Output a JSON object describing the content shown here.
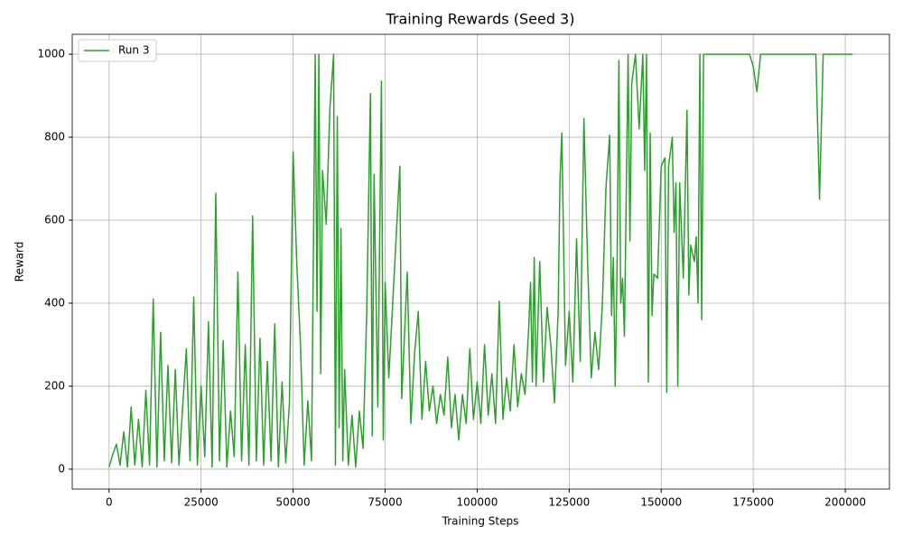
{
  "chart_data": {
    "type": "line",
    "title": "Training Rewards (Seed 3)",
    "xlabel": "Training Steps",
    "ylabel": "Reward",
    "x": [
      0,
      1000,
      2000,
      3000,
      4000,
      5000,
      6000,
      7000,
      8000,
      9000,
      10000,
      11000,
      12000,
      13000,
      14000,
      15000,
      16000,
      17000,
      18000,
      19000,
      20000,
      21000,
      22000,
      23000,
      24000,
      25000,
      26000,
      27000,
      28000,
      29000,
      30000,
      31000,
      32000,
      33000,
      34000,
      35000,
      36000,
      37000,
      38000,
      39000,
      40000,
      41000,
      42000,
      43000,
      44000,
      45000,
      46000,
      47000,
      48000,
      49000,
      50000,
      51000,
      52000,
      53000,
      54000,
      55000,
      56000,
      56500,
      57000,
      57500,
      58000,
      59000,
      60000,
      61000,
      61500,
      62000,
      62500,
      63000,
      63500,
      64000,
      65000,
      66000,
      67000,
      68000,
      69000,
      70000,
      71000,
      71500,
      72000,
      73000,
      74000,
      74500,
      75000,
      76000,
      77000,
      78000,
      79000,
      79500,
      80000,
      81000,
      82000,
      83000,
      84000,
      85000,
      86000,
      87000,
      88000,
      89000,
      90000,
      91000,
      92000,
      93000,
      94000,
      95000,
      96000,
      97000,
      98000,
      99000,
      100000,
      101000,
      102000,
      103000,
      104000,
      105000,
      106000,
      107000,
      108000,
      109000,
      110000,
      111000,
      112000,
      113000,
      114000,
      114500,
      115000,
      115500,
      116000,
      117000,
      118000,
      119000,
      120000,
      121000,
      122000,
      122500,
      123000,
      124000,
      125000,
      126000,
      127000,
      128000,
      129000,
      130000,
      131000,
      132000,
      133000,
      134000,
      135000,
      136000,
      136500,
      137000,
      137500,
      138000,
      138500,
      139000,
      139500,
      140000,
      141000,
      141500,
      142000,
      143000,
      144000,
      145000,
      145500,
      146000,
      146500,
      147000,
      147500,
      148000,
      149000,
      150000,
      151000,
      151500,
      152000,
      153000,
      153500,
      154000,
      154500,
      155000,
      156000,
      157000,
      157500,
      158000,
      159000,
      159500,
      160000,
      160500,
      161000,
      161500,
      162000,
      170000,
      174000,
      175000,
      176000,
      177000,
      185000,
      192000,
      193000,
      194000,
      202000
    ],
    "series": [
      {
        "name": "Run 3",
        "color": "#2ca02c",
        "values": [
          5,
          35,
          60,
          10,
          90,
          5,
          150,
          10,
          120,
          5,
          190,
          10,
          410,
          5,
          330,
          20,
          250,
          15,
          240,
          10,
          150,
          290,
          20,
          415,
          10,
          200,
          30,
          355,
          5,
          665,
          20,
          310,
          5,
          140,
          30,
          475,
          20,
          300,
          10,
          610,
          20,
          315,
          10,
          260,
          20,
          350,
          5,
          210,
          15,
          160,
          765,
          495,
          300,
          10,
          165,
          20,
          1000,
          380,
          1000,
          230,
          720,
          590,
          870,
          1000,
          10,
          850,
          100,
          580,
          20,
          240,
          10,
          130,
          5,
          140,
          50,
          380,
          905,
          80,
          710,
          150,
          935,
          70,
          450,
          220,
          390,
          560,
          730,
          170,
          270,
          475,
          110,
          280,
          380,
          120,
          260,
          140,
          200,
          110,
          180,
          130,
          270,
          100,
          180,
          70,
          180,
          110,
          290,
          120,
          210,
          110,
          300,
          130,
          230,
          110,
          405,
          120,
          220,
          140,
          300,
          150,
          230,
          180,
          340,
          450,
          210,
          510,
          200,
          500,
          210,
          390,
          300,
          160,
          380,
          700,
          810,
          250,
          380,
          210,
          555,
          260,
          845,
          500,
          220,
          330,
          240,
          395,
          680,
          805,
          370,
          510,
          200,
          480,
          985,
          400,
          460,
          320,
          1000,
          550,
          930,
          1000,
          820,
          1000,
          720,
          1000,
          210,
          810,
          370,
          470,
          460,
          730,
          750,
          185,
          730,
          800,
          570,
          690,
          200,
          690,
          460,
          865,
          420,
          540,
          500,
          560,
          400,
          1000,
          360,
          1000,
          1000,
          1000,
          1000,
          970,
          910,
          1000,
          1000,
          1000,
          650,
          1000,
          1000
        ]
      }
    ],
    "xlim": [
      -10000,
      212000
    ],
    "ylim": [
      -48,
      1048
    ],
    "xticks": [
      0,
      25000,
      50000,
      75000,
      100000,
      125000,
      150000,
      175000,
      200000
    ],
    "yticks": [
      0,
      200,
      400,
      600,
      800,
      1000
    ],
    "grid": true,
    "legend": "upper left"
  }
}
